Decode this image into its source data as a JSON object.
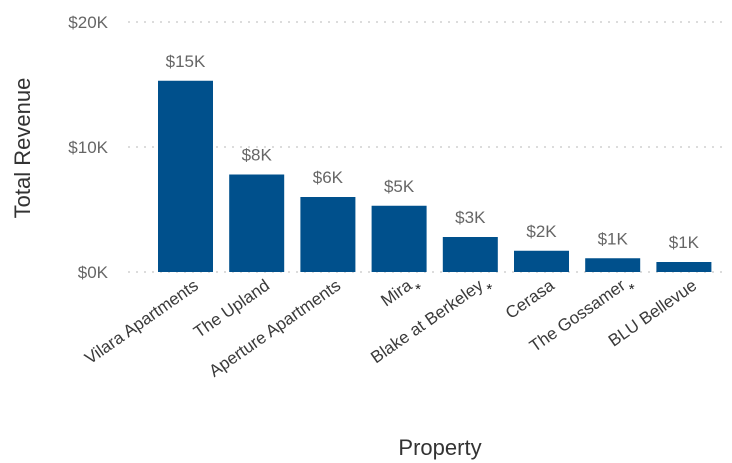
{
  "chart_data": {
    "type": "bar",
    "title": "",
    "xlabel": "Property",
    "ylabel": "Total Revenue",
    "ylim": [
      0,
      20000
    ],
    "yticks": [
      0,
      10000,
      20000
    ],
    "ytick_labels": [
      "$0K",
      "$10K",
      "$20K"
    ],
    "grid": true,
    "color": "#00508c",
    "categories": [
      "Vilara Apartments",
      "The Upland",
      "Aperture Apartments",
      "Mira",
      "Blake at Berkeley",
      "Cerasa",
      "The Gossamer",
      "BLU Bellevue"
    ],
    "values": [
      15300,
      7800,
      6000,
      5300,
      2800,
      1700,
      1100,
      800
    ],
    "data_labels": [
      "$15K",
      "$8K",
      "$6K",
      "$5K",
      "$3K",
      "$2K",
      "$1K",
      "$1K"
    ],
    "markers": [
      "",
      "",
      "",
      "*",
      "*",
      "",
      "*",
      ""
    ]
  }
}
